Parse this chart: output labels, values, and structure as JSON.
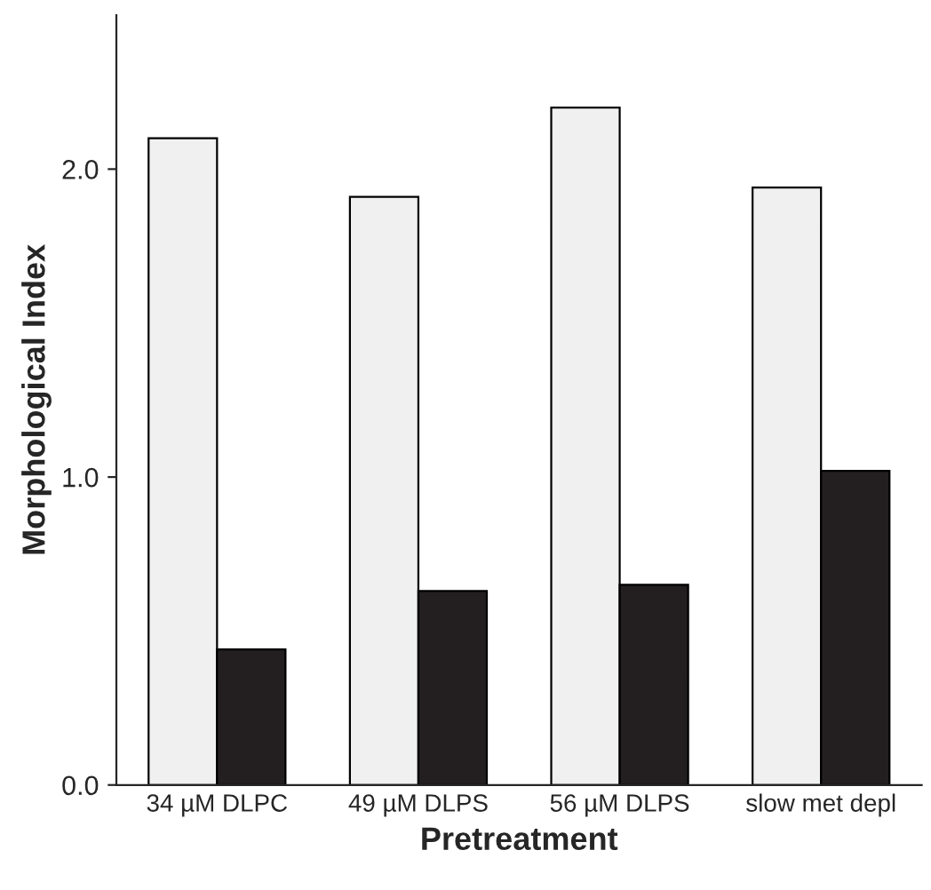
{
  "chart_data": {
    "type": "bar",
    "xlabel": "Pretreatment",
    "ylabel": "Morphological Index",
    "categories": [
      "34 µM DLPC",
      "49 µM DLPS",
      "56 µM DLPS",
      "slow met depl"
    ],
    "series": [
      {
        "color": "#f0f0f0",
        "values": [
          2.1,
          1.91,
          2.2,
          1.94
        ]
      },
      {
        "color": "#231f20",
        "values": [
          0.44,
          0.63,
          0.65,
          1.02
        ]
      }
    ],
    "ylim": [
      0,
      2.5
    ],
    "yticks": [
      {
        "value": 0,
        "label": "0.0"
      },
      {
        "value": 1,
        "label": "1.0"
      },
      {
        "value": 2,
        "label": "2.0"
      }
    ],
    "grid": false,
    "legend": false
  }
}
